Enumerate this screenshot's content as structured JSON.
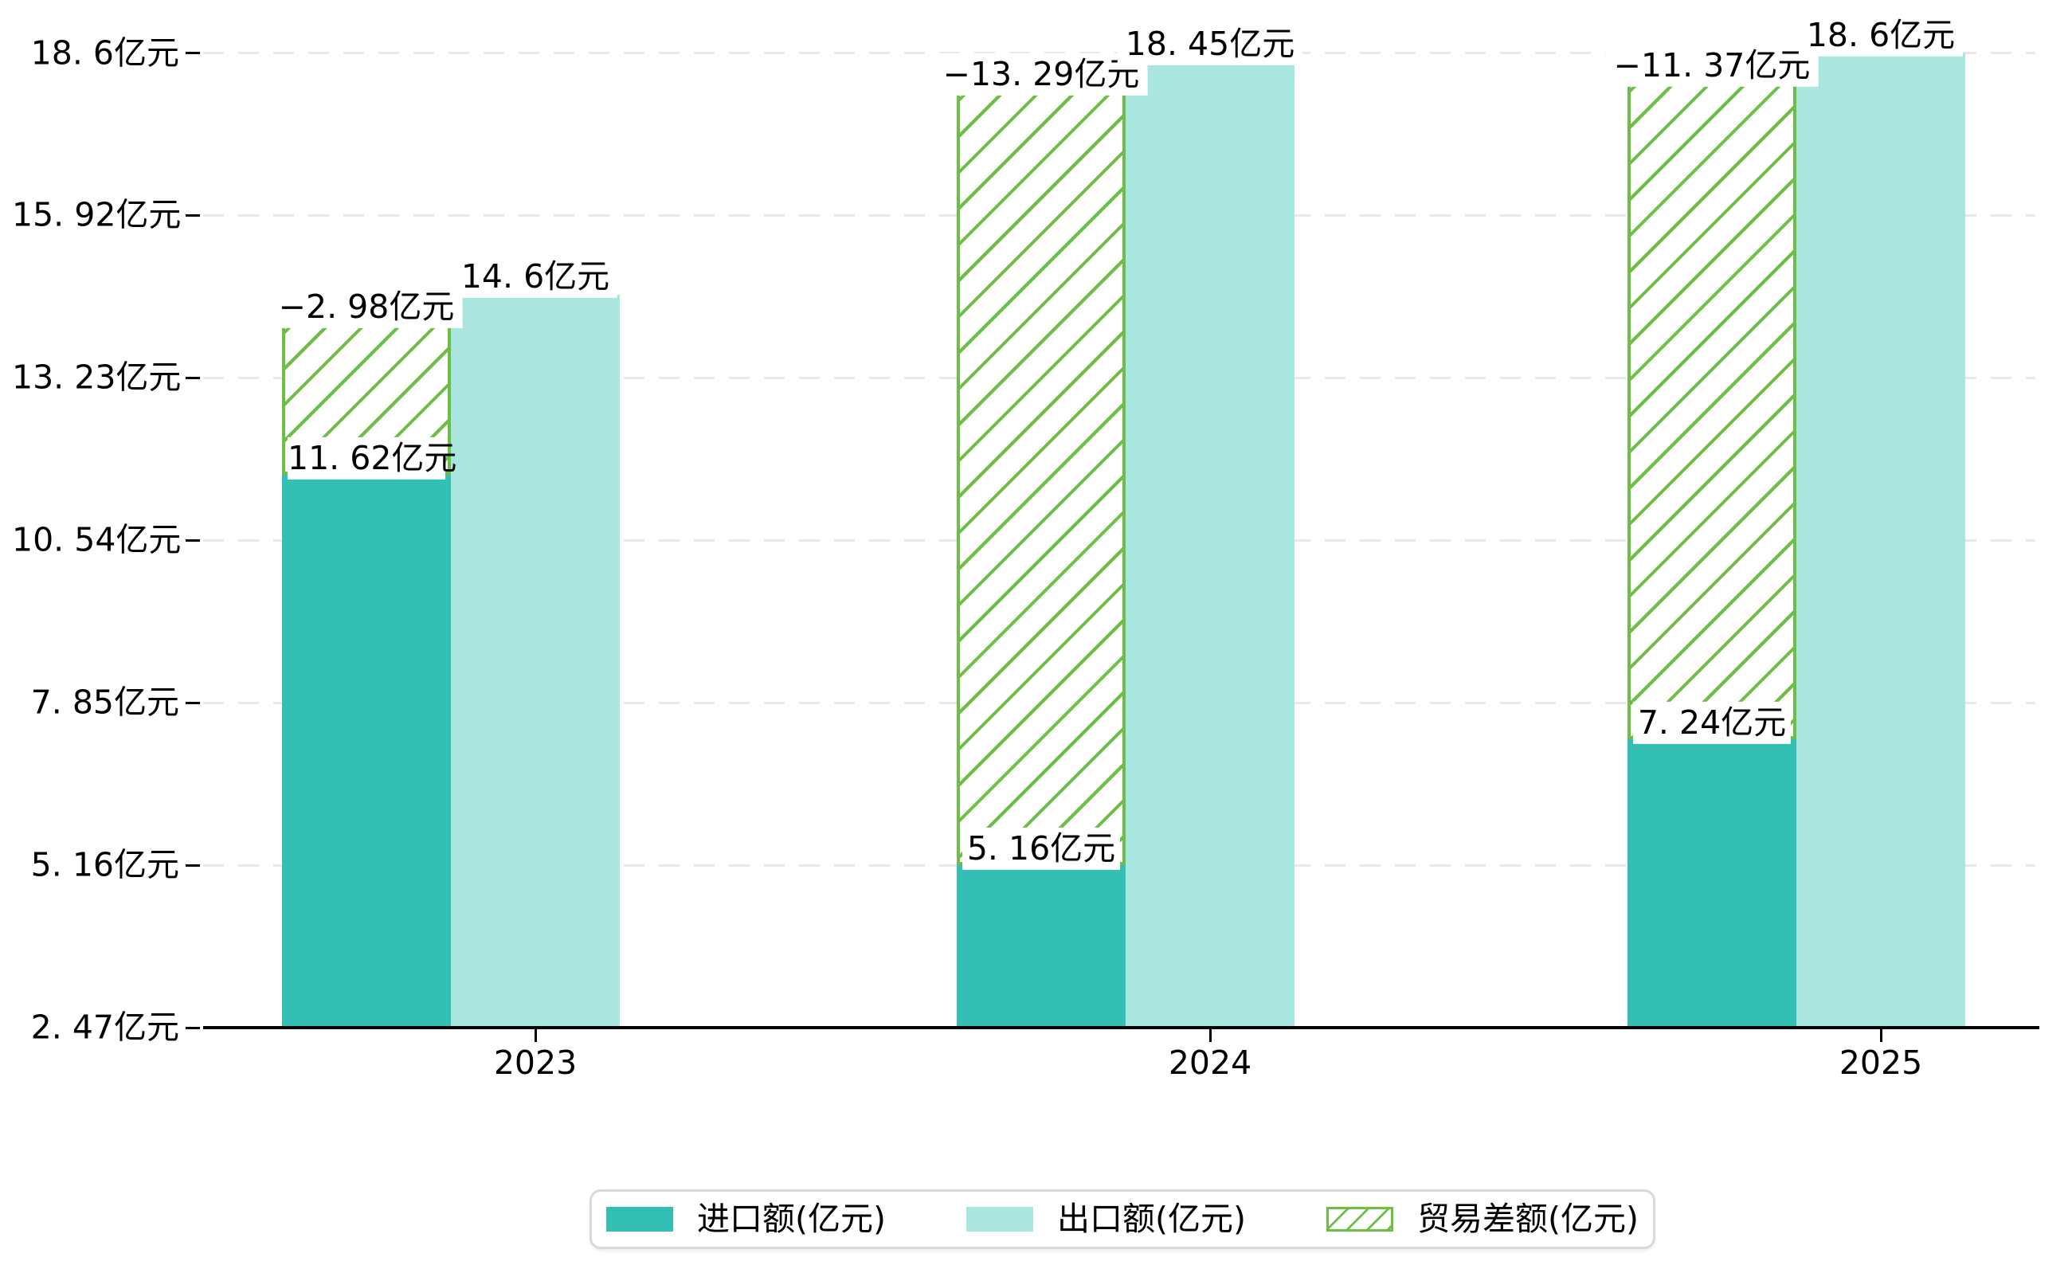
{
  "chart_data": {
    "type": "bar",
    "title": "",
    "unit": "亿元",
    "categories": [
      "2023",
      "2024",
      "2025"
    ],
    "series": [
      {
        "name": "进口额(亿元)",
        "role": "import",
        "values": [
          11.62,
          5.16,
          7.24
        ],
        "value_labels": [
          "11. 62亿元",
          "5. 16亿元",
          "7. 24亿元"
        ]
      },
      {
        "name": "出口额(亿元)",
        "role": "export",
        "values": [
          14.6,
          18.45,
          18.6
        ],
        "value_labels": [
          "14. 6亿元",
          "18. 45亿元",
          "18. 6亿元"
        ]
      },
      {
        "name": "贸易差额(亿元)",
        "role": "balance",
        "values": [
          -2.98,
          -13.29,
          -11.37
        ],
        "value_labels": [
          "−2. 98亿元",
          "−13. 29亿元",
          "−11. 37亿元"
        ]
      }
    ],
    "y_axis": {
      "min": 2.47,
      "max": 18.6,
      "tick_values": [
        2.47,
        5.16,
        7.85,
        10.54,
        13.23,
        15.92,
        18.6
      ],
      "tick_labels": [
        "2. 47亿元",
        "5. 16亿元",
        "7. 85亿元",
        "10. 54亿元",
        "13. 23亿元",
        "15. 92亿元",
        "18. 6亿元"
      ]
    },
    "x_axis": {
      "tick_labels": [
        "2023",
        "2024",
        "2025"
      ]
    },
    "grid": "horizontal-dashed",
    "legend_position": "bottom-center",
    "notes": "hatched balance bar spans from top of import bar to top of export bar"
  },
  "legend": {
    "items": [
      {
        "label": "进口额(亿元)",
        "swatch": "solid-import"
      },
      {
        "label": "出口额(亿元)",
        "swatch": "solid-export"
      },
      {
        "label": "贸易差额(亿元)",
        "swatch": "hatched-green"
      }
    ]
  },
  "colors": {
    "import": "#33BFB3",
    "export": "#A9E6DF",
    "balance_hatch": "#6CBE45",
    "grid": "#E8E8E8",
    "axis": "#000000",
    "label_bg": "#FFFFFF",
    "legend_border": "#D9D9D9",
    "text": "#000000"
  }
}
